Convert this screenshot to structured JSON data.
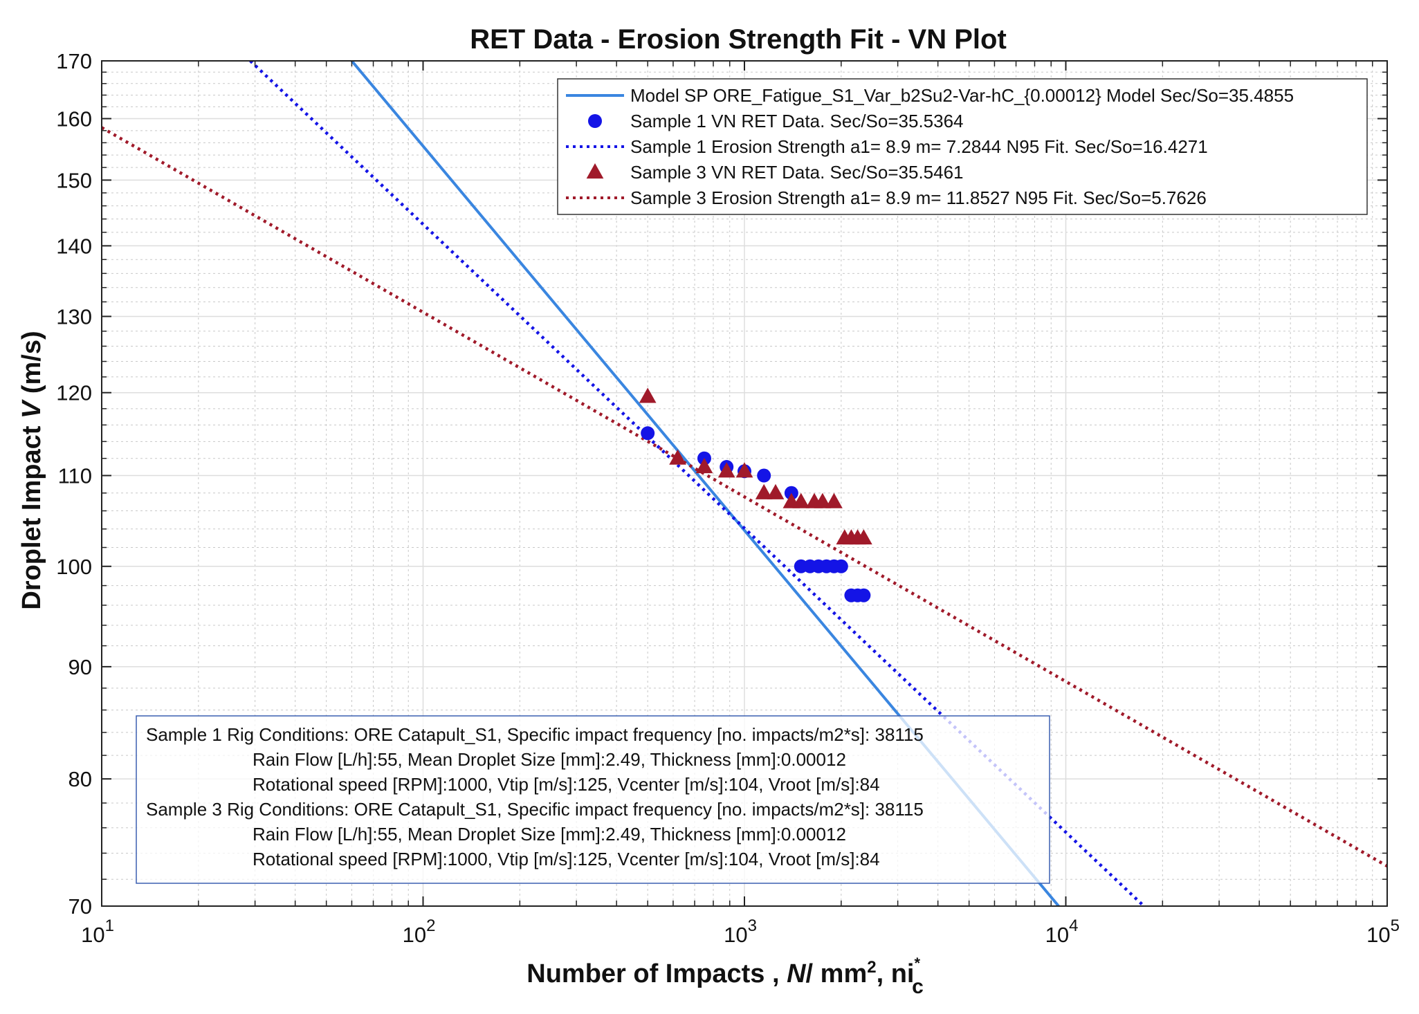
{
  "chart_data": {
    "type": "scatter",
    "title": "RET Data - Erosion Strength Fit - VN Plot",
    "xlabel": {
      "prefix": "Number of Impacts , ",
      "italic": "N",
      "mid": "/ mm",
      "sup": "2",
      "after": ", ni",
      "sub_sup": "*",
      "sub": "c"
    },
    "ylabel": {
      "prefix": "Droplet Impact ",
      "italic": "V",
      "suffix": " (m/s)"
    },
    "xscale": "log",
    "yscale": "log",
    "xlim": [
      10,
      100000
    ],
    "ylim": [
      70,
      170
    ],
    "xticks": [
      {
        "value": 10,
        "base": "10",
        "exp": "1"
      },
      {
        "value": 100,
        "base": "10",
        "exp": "2"
      },
      {
        "value": 1000,
        "base": "10",
        "exp": "3"
      },
      {
        "value": 10000,
        "base": "10",
        "exp": "4"
      },
      {
        "value": 100000,
        "base": "10",
        "exp": "5"
      }
    ],
    "yticks": [
      {
        "value": 70,
        "label": "70"
      },
      {
        "value": 80,
        "label": "80"
      },
      {
        "value": 90,
        "label": "90"
      },
      {
        "value": 100,
        "label": "100"
      },
      {
        "value": 110,
        "label": "110"
      },
      {
        "value": 120,
        "label": "120"
      },
      {
        "value": 130,
        "label": "130"
      },
      {
        "value": 140,
        "label": "140"
      },
      {
        "value": 150,
        "label": "150"
      },
      {
        "value": 160,
        "label": "160"
      },
      {
        "value": 170,
        "label": "170"
      }
    ],
    "grid": true,
    "legend_position": "top-right",
    "series": [
      {
        "name": "Model SP ORE_Fatigue_S1_Var_b2Su2-Var-hC_{0.00012} Model Sec/So=35.4855",
        "kind": "line",
        "style": "solid",
        "color": "#3a86e0",
        "points": [
          [
            60,
            170
          ],
          [
            9500,
            70
          ]
        ]
      },
      {
        "name": "Sample 1 VN RET Data. Sec/So=35.5364",
        "kind": "marker",
        "marker": "circle",
        "color": "#1414e6",
        "points": [
          [
            500,
            115
          ],
          [
            750,
            112
          ],
          [
            880,
            111
          ],
          [
            1000,
            110.5
          ],
          [
            1150,
            110
          ],
          [
            1400,
            108
          ],
          [
            1500,
            100
          ],
          [
            1600,
            100
          ],
          [
            1700,
            100
          ],
          [
            1800,
            100
          ],
          [
            1900,
            100
          ],
          [
            2000,
            100
          ],
          [
            2150,
            97
          ],
          [
            2250,
            97
          ],
          [
            2350,
            97
          ]
        ]
      },
      {
        "name": "Sample 1 Erosion Strength a1= 8.9 m= 7.2844 N95 Fit.  Sec/So=16.4271",
        "kind": "line",
        "style": "dotted",
        "color": "#1414e6",
        "points": [
          [
            29,
            170
          ],
          [
            17500,
            70
          ]
        ]
      },
      {
        "name": "Sample 3 VN RET Data. Sec/So=35.5461",
        "kind": "marker",
        "marker": "triangle",
        "color": "#a01a2a",
        "points": [
          [
            500,
            119.5
          ],
          [
            620,
            112
          ],
          [
            750,
            111
          ],
          [
            880,
            110.5
          ],
          [
            1000,
            110.5
          ],
          [
            1150,
            108
          ],
          [
            1250,
            108
          ],
          [
            1400,
            107
          ],
          [
            1500,
            107
          ],
          [
            1650,
            107
          ],
          [
            1750,
            107
          ],
          [
            1900,
            107
          ],
          [
            2050,
            103
          ],
          [
            2150,
            103
          ],
          [
            2250,
            103
          ],
          [
            2350,
            103
          ]
        ]
      },
      {
        "name": "Sample 3 Erosion Strength a1= 8.9 m= 11.8527 N95 Fit.  Sec/So=5.7626",
        "kind": "line",
        "style": "dotted",
        "color": "#a01a2a",
        "points": [
          [
            10,
            158.5
          ],
          [
            100000,
            73
          ]
        ]
      }
    ],
    "annotation": {
      "lines": [
        "Sample 1 Rig Conditions: ORE Catapult_S1,  Specific impact frequency [no. impacts/m2*s]: 38115",
        "Rain Flow [L/h]:55, Mean Droplet Size [mm]:2.49, Thickness [mm]:0.00012",
        "Rotational speed [RPM]:1000, Vtip [m/s]:125, Vcenter [m/s]:104, Vroot [m/s]:84",
        "Sample 3 Rig Conditions: ORE Catapult_S1,  Specific impact frequency [no. impacts/m2*s]: 38115",
        "Rain Flow [L/h]:55, Mean Droplet Size [mm]:2.49, Thickness [mm]:0.00012",
        "Rotational speed [RPM]:1000, Vtip [m/s]:125, Vcenter [m/s]:104, Vroot [m/s]:84"
      ],
      "indent": [
        false,
        true,
        true,
        false,
        true,
        true
      ],
      "position": "bottom-left"
    }
  }
}
